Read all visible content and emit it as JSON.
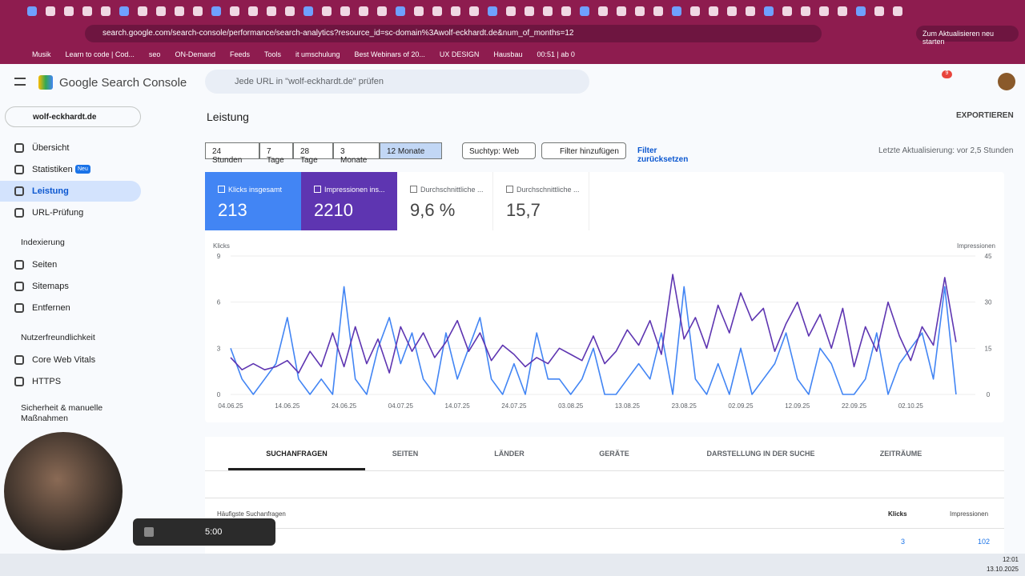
{
  "browser": {
    "url": "search.google.com/search-console/performance/search-analytics?resource_id=sc-domain%3Awolf-eckhardt.de&num_of_months=12",
    "update_button": "Zum Aktualisieren neu starten",
    "bookmarks": [
      "Musik",
      "Learn to code | Cod...",
      "seo",
      "ON-Demand",
      "Feeds",
      "Tools",
      "it umschulung",
      "Best Webinars of 20...",
      "UX DESIGN",
      "Hausbau",
      "00:51 | ab 0"
    ]
  },
  "header": {
    "product": "Google Search Console",
    "search_placeholder": "Jede URL in \"wolf-eckhardt.de\" prüfen",
    "notifications": 9
  },
  "sidebar": {
    "property": "wolf-eckhardt.de",
    "items": [
      {
        "label": "Übersicht"
      },
      {
        "label": "Statistiken",
        "badge": "Neu"
      },
      {
        "label": "Leistung",
        "active": true
      },
      {
        "label": "URL-Prüfung"
      },
      {
        "label": "Indexierung",
        "section": true
      },
      {
        "label": "Seiten"
      },
      {
        "label": "Sitemaps"
      },
      {
        "label": "Entfernen"
      },
      {
        "label": "Nutzerfreundlichkeit",
        "section": true
      },
      {
        "label": "Core Web Vitals"
      },
      {
        "label": "HTTPS"
      },
      {
        "label": "Sicherheit & manuelle Maßnahmen",
        "section": true
      }
    ]
  },
  "page": {
    "title": "Leistung",
    "export": "EXPORTIEREN",
    "ranges": [
      "24 Stunden",
      "7 Tage",
      "28 Tage",
      "3 Monate",
      "12 Monate"
    ],
    "selected_range": 4,
    "search_type": "Suchtyp: Web",
    "add_filter": "Filter hinzufügen",
    "reset_filter": "Filter zurücksetzen",
    "last_update": "Letzte Aktualisierung: vor 2,5 Stunden"
  },
  "metrics": [
    {
      "label": "Klicks insgesamt",
      "value": 213,
      "checked": true,
      "color": "#4285f4"
    },
    {
      "label": "Impressionen ins...",
      "value": 2210,
      "checked": true,
      "color": "#5e35b1"
    },
    {
      "label": "Durchschnittliche ...",
      "value": "9,6 %",
      "checked": false
    },
    {
      "label": "Durchschnittliche ...",
      "value": "15,7",
      "checked": false
    }
  ],
  "chart_data": {
    "type": "line",
    "y_label": "Klicks",
    "y2_label": "Impressionen",
    "categories": [
      "04.06.25",
      null,
      null,
      null,
      null,
      "14.06.25",
      null,
      null,
      null,
      null,
      "24.06.25",
      null,
      null,
      null,
      null,
      "04.07.25",
      null,
      null,
      null,
      null,
      "14.07.25",
      null,
      null,
      null,
      null,
      "24.07.25",
      null,
      null,
      null,
      null,
      "03.08.25",
      null,
      null,
      null,
      null,
      "13.08.25",
      null,
      null,
      null,
      null,
      "23.08.25",
      null,
      null,
      null,
      null,
      "02.09.25",
      null,
      null,
      null,
      null,
      "12.09.25",
      null,
      null,
      null,
      null,
      "22.09.25",
      null,
      null,
      null,
      null,
      "02.10.25",
      null,
      null,
      null,
      null
    ],
    "ylim": [
      0,
      9
    ],
    "yticks": [
      0,
      3,
      6,
      9
    ],
    "y2lim": [
      0,
      45
    ],
    "y2ticks": [
      0,
      15,
      30,
      45
    ],
    "series": [
      {
        "name": "Klicks",
        "color": "#4285f4",
        "values": [
          3,
          1,
          0,
          1,
          2,
          5,
          1,
          0,
          1,
          0,
          7,
          1,
          0,
          3,
          5,
          2,
          4,
          1,
          0,
          4,
          1,
          3,
          5,
          1,
          0,
          2,
          0,
          4,
          1,
          1,
          0,
          1,
          3,
          0,
          0,
          1,
          2,
          1,
          4,
          0,
          7,
          1,
          0,
          2,
          0,
          3,
          0,
          1,
          2,
          4,
          1,
          0,
          3,
          2,
          0,
          0,
          1,
          4,
          0,
          2,
          3,
          4,
          1,
          7,
          0
        ]
      },
      {
        "name": "Impressionen",
        "color": "#5e35b1",
        "axis": "y2",
        "values": [
          12,
          8,
          10,
          8,
          9,
          11,
          7,
          14,
          9,
          20,
          9,
          22,
          10,
          18,
          7,
          22,
          14,
          20,
          12,
          17,
          24,
          14,
          20,
          11,
          16,
          13,
          9,
          12,
          10,
          15,
          13,
          11,
          19,
          10,
          14,
          21,
          16,
          24,
          13,
          39,
          18,
          25,
          15,
          29,
          20,
          33,
          24,
          28,
          14,
          23,
          30,
          19,
          26,
          15,
          28,
          9,
          22,
          14,
          30,
          19,
          11,
          22,
          16,
          38,
          17
        ]
      }
    ]
  },
  "table": {
    "tabs": [
      "SUCHANFRAGEN",
      "SEITEN",
      "LÄNDER",
      "GERÄTE",
      "DARSTELLUNG IN DER SUCHE",
      "ZEITRÄUME"
    ],
    "columns": [
      "Häufigste Suchanfragen",
      "Klicks",
      "Impressionen"
    ],
    "rows": [
      [
        3,
        102
      ]
    ]
  },
  "recorder": {
    "time": "5:00"
  },
  "taskbar": {
    "time": "12:01",
    "date": "13.10.2025"
  }
}
